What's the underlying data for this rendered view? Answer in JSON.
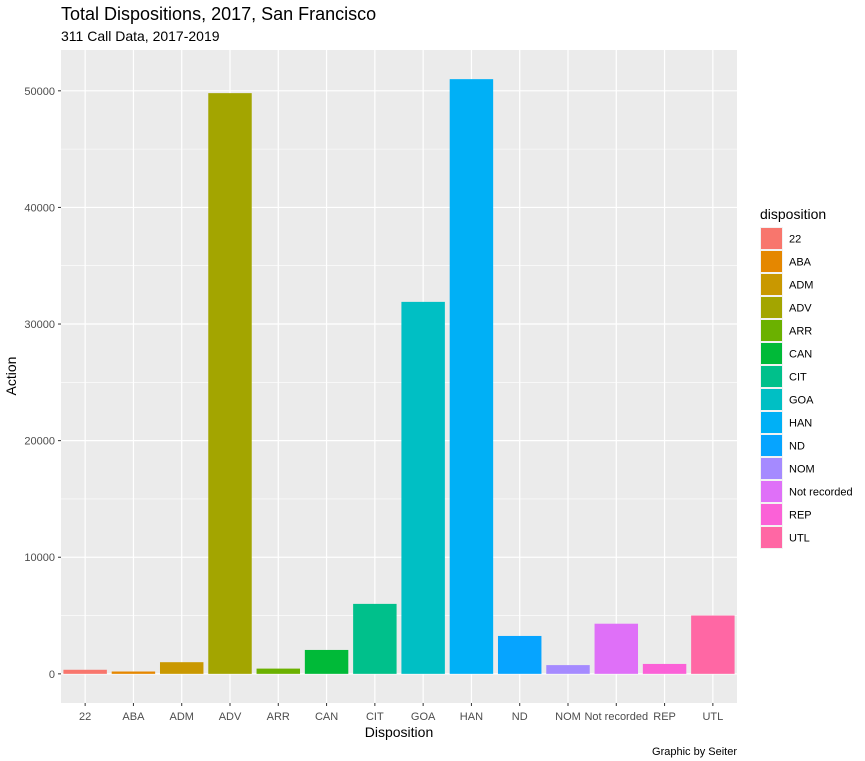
{
  "chart_data": {
    "type": "bar",
    "title": "Total Dispositions, 2017, San Francisco",
    "subtitle": "311 Call Data, 2017-2019",
    "xlabel": "Disposition",
    "ylabel": "Action",
    "caption": "Graphic by Seiter",
    "categories": [
      "22",
      "ABA",
      "ADM",
      "ADV",
      "ARR",
      "CAN",
      "CIT",
      "GOA",
      "HAN",
      "ND",
      "NOM",
      "Not recorded",
      "REP",
      "UTL"
    ],
    "values": [
      350,
      200,
      1000,
      49800,
      450,
      2050,
      6000,
      31900,
      51000,
      3250,
      750,
      4300,
      850,
      5000
    ],
    "colors": [
      "#F8766D",
      "#E58700",
      "#C99800",
      "#A3A500",
      "#6BB100",
      "#00BA38",
      "#00C08B",
      "#00BFC4",
      "#00B0F6",
      "#06A4FF",
      "#A58AFF",
      "#DF70F8",
      "#FB61D7",
      "#FF67A4"
    ],
    "ylim": [
      -2500,
      53500
    ],
    "yticks": [
      0,
      10000,
      20000,
      30000,
      40000,
      50000
    ],
    "ytick_labels": [
      "0",
      "10000",
      "20000",
      "30000",
      "40000",
      "50000"
    ],
    "grid": true,
    "legend": {
      "title": "disposition",
      "placement": "right",
      "entries": [
        "22",
        "ABA",
        "ADM",
        "ADV",
        "ARR",
        "CAN",
        "CIT",
        "GOA",
        "HAN",
        "ND",
        "NOM",
        "Not recorded",
        "REP",
        "UTL"
      ]
    }
  }
}
